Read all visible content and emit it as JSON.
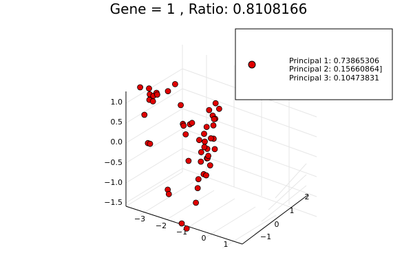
{
  "chart_data": {
    "type": "scatter",
    "title": "Gene = 1 , Ratio: 0.8108166",
    "marker_color": "#e00000",
    "marker_edge_color": "#000000",
    "grid": true,
    "legend": {
      "placement": "top-right",
      "entries": [
        "Principal 1: 0.73865306",
        "Principal 2: 0.15660864]",
        "Principal 3: 0.10473831"
      ]
    },
    "axes": {
      "x": {
        "ticks": [
          "−3",
          "−2",
          "−1",
          "0",
          "1"
        ]
      },
      "y": {
        "ticks": [
          "−1",
          "0",
          "1",
          "2"
        ]
      },
      "z": {
        "ticks": [
          "−1.5",
          "−1.0",
          "−0.5",
          "0.0",
          "0.5",
          "1.0"
        ]
      }
    },
    "points": [
      {
        "x": -2.9,
        "y": 1.5,
        "z": 0.9
      },
      {
        "x": -2.7,
        "y": 1.5,
        "z": 0.25
      },
      {
        "x": -2.55,
        "y": 1.6,
        "z": 0.9
      },
      {
        "x": -2.5,
        "y": 1.6,
        "z": 0.75
      },
      {
        "x": -2.45,
        "y": 1.5,
        "z": 0.8
      },
      {
        "x": -2.4,
        "y": 1.4,
        "z": 0.7
      },
      {
        "x": -2.35,
        "y": 1.6,
        "z": 0.75
      },
      {
        "x": -2.3,
        "y": 1.5,
        "z": 0.65
      },
      {
        "x": -2.2,
        "y": 1.6,
        "z": 0.85
      },
      {
        "x": -2.1,
        "y": 1.5,
        "z": 0.85
      },
      {
        "x": -2.4,
        "y": 1.3,
        "z": -0.35
      },
      {
        "x": -2.3,
        "y": 1.3,
        "z": -0.35
      },
      {
        "x": -1.8,
        "y": 1.8,
        "z": 0.9
      },
      {
        "x": -1.6,
        "y": 2.0,
        "z": 1.05
      },
      {
        "x": -1.2,
        "y": 1.8,
        "z": 0.65
      },
      {
        "x": -1.1,
        "y": 1.8,
        "z": 0.2
      },
      {
        "x": -1.0,
        "y": 1.7,
        "z": 0.2
      },
      {
        "x": -0.9,
        "y": 1.7,
        "z": 0.0
      },
      {
        "x": -0.7,
        "y": 1.6,
        "z": -0.6
      },
      {
        "x": -1.2,
        "y": 0.9,
        "z": -1.2
      },
      {
        "x": -1.15,
        "y": 0.9,
        "z": -1.3
      },
      {
        "x": -0.5,
        "y": 1.4,
        "z": 0.4
      },
      {
        "x": -0.4,
        "y": 1.4,
        "z": 0.45
      },
      {
        "x": -0.2,
        "y": 1.6,
        "z": 0.0
      },
      {
        "x": -0.1,
        "y": 1.4,
        "z": -0.9
      },
      {
        "x": 0.0,
        "y": 1.2,
        "z": -1.05
      },
      {
        "x": 0.05,
        "y": 1.0,
        "z": -1.35
      },
      {
        "x": 0.3,
        "y": 1.2,
        "z": 0.35
      },
      {
        "x": 0.35,
        "y": 1.3,
        "z": 0.5
      },
      {
        "x": 0.4,
        "y": 1.1,
        "z": 0.2
      },
      {
        "x": 0.45,
        "y": 1.2,
        "z": 0.0
      },
      {
        "x": 0.5,
        "y": 1.1,
        "z": -0.2
      },
      {
        "x": 0.4,
        "y": 1.4,
        "z": 0.9
      },
      {
        "x": 0.5,
        "y": 1.5,
        "z": 0.75
      },
      {
        "x": 0.55,
        "y": 1.6,
        "z": 0.65
      },
      {
        "x": 0.6,
        "y": 1.4,
        "z": 0.55
      },
      {
        "x": 0.3,
        "y": 1.0,
        "z": -0.05
      },
      {
        "x": 0.35,
        "y": 0.9,
        "z": -0.25
      },
      {
        "x": 0.6,
        "y": 1.0,
        "z": -0.15
      },
      {
        "x": 0.65,
        "y": 1.1,
        "z": -0.35
      },
      {
        "x": 0.55,
        "y": 0.8,
        "z": -0.5
      },
      {
        "x": 0.6,
        "y": 0.9,
        "z": -0.55
      },
      {
        "x": 0.7,
        "y": 1.3,
        "z": 0.75
      },
      {
        "x": 0.75,
        "y": 1.2,
        "z": 0.3
      },
      {
        "x": 0.8,
        "y": 1.2,
        "z": 0.05
      },
      {
        "x": 0.5,
        "y": 1.7,
        "z": 1.0
      },
      {
        "x": 0.6,
        "y": 1.8,
        "z": 0.85
      },
      {
        "x": 0.55,
        "y": 1.3,
        "z": 0.25
      },
      {
        "x": 0.45,
        "y": 1.0,
        "z": 0.1
      },
      {
        "x": 0.7,
        "y": 0.9,
        "z": -0.05
      },
      {
        "x": 0.2,
        "y": -0.2,
        "z": -1.5
      },
      {
        "x": 0.5,
        "y": -0.3,
        "z": -1.55
      }
    ]
  }
}
